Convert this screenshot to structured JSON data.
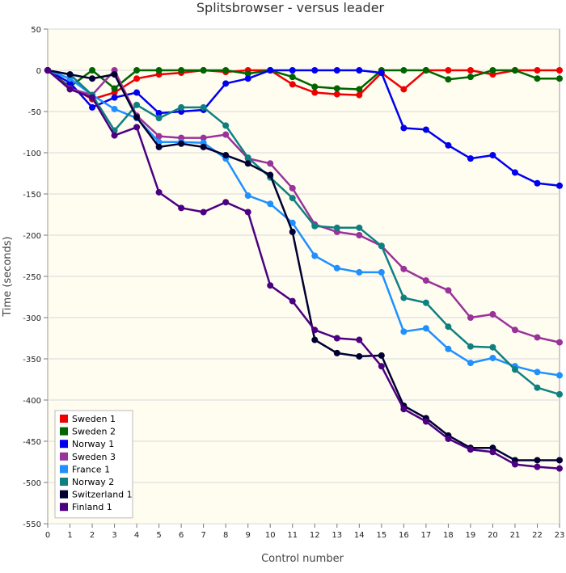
{
  "chart_data": {
    "type": "line",
    "title": "Splitsbrowser - versus leader",
    "xlabel": "Control number",
    "ylabel": "Time (seconds)",
    "ylim": [
      -550,
      50
    ],
    "yticks": [
      50,
      0,
      -50,
      -100,
      -150,
      -200,
      -250,
      -300,
      -350,
      -400,
      -450,
      -500,
      -550
    ],
    "xlim": [
      0,
      23
    ],
    "xticks": [
      "0",
      "1",
      "2",
      "3",
      "4",
      "5",
      "6",
      "7",
      "8",
      "9",
      "10",
      "11",
      "12",
      "13",
      "14",
      "15",
      "16",
      "17",
      "18",
      "19",
      "20",
      "21",
      "22",
      "23"
    ],
    "x": [
      0,
      1,
      2,
      3,
      4,
      5,
      6,
      7,
      8,
      9,
      10,
      11,
      12,
      13,
      14,
      15,
      16,
      17,
      18,
      19,
      20,
      21,
      22,
      23
    ],
    "grid": true,
    "legend_position": "bottom-left",
    "series": [
      {
        "name": "Sweden 1",
        "color": "#ee0000",
        "values": [
          0,
          -20,
          -35,
          -27,
          -10,
          -5,
          -3,
          0,
          -2,
          0,
          0,
          -17,
          -27,
          -29,
          -30,
          -3,
          -23,
          0,
          0,
          0,
          -5,
          0,
          0,
          0
        ]
      },
      {
        "name": "Sweden 2",
        "color": "#006400",
        "values": [
          0,
          -20,
          0,
          -22,
          0,
          0,
          0,
          0,
          0,
          -4,
          0,
          -8,
          -20,
          -22,
          -23,
          0,
          0,
          0,
          -11,
          -8,
          0,
          0,
          -10,
          -10
        ]
      },
      {
        "name": "Norway 1",
        "color": "#0000ee",
        "values": [
          0,
          -15,
          -45,
          -33,
          -27,
          -52,
          -50,
          -48,
          -16,
          -10,
          0,
          0,
          0,
          0,
          0,
          -3,
          -70,
          -72,
          -91,
          -107,
          -103,
          -124,
          -137,
          -140
        ]
      },
      {
        "name": "Sweden 3",
        "color": "#993399",
        "values": [
          0,
          -22,
          -30,
          0,
          -55,
          -80,
          -82,
          -82,
          -78,
          -107,
          -113,
          -143,
          -187,
          -196,
          -200,
          -213,
          -241,
          -255,
          -267,
          -300,
          -296,
          -315,
          -324,
          -330
        ]
      },
      {
        "name": "France 1",
        "color": "#1e90ff",
        "values": [
          0,
          -10,
          -30,
          -47,
          -58,
          -87,
          -87,
          -88,
          -107,
          -152,
          -162,
          -185,
          -225,
          -240,
          -245,
          -245,
          -317,
          -313,
          -338,
          -355,
          -349,
          -359,
          -366,
          -370
        ]
      },
      {
        "name": "Norway 2",
        "color": "#0f8080",
        "values": [
          0,
          -5,
          -30,
          -73,
          -42,
          -58,
          -45,
          -45,
          -67,
          -106,
          -130,
          -155,
          -189,
          -191,
          -191,
          -213,
          -276,
          -282,
          -311,
          -335,
          -336,
          -363,
          -385,
          -393
        ]
      },
      {
        "name": "Switzerland 1",
        "color": "#000033",
        "values": [
          0,
          -5,
          -10,
          -5,
          -57,
          -93,
          -89,
          -93,
          -103,
          -113,
          -127,
          -196,
          -327,
          -343,
          -347,
          -346,
          -407,
          -422,
          -443,
          -458,
          -458,
          -473,
          -473,
          -473
        ]
      },
      {
        "name": "Finland 1",
        "color": "#4b0082",
        "values": [
          0,
          -23,
          -33,
          -79,
          -69,
          -148,
          -167,
          -172,
          -160,
          -172,
          -261,
          -280,
          -315,
          -325,
          -327,
          -359,
          -411,
          -426,
          -447,
          -460,
          -463,
          -478,
          -481,
          -483
        ]
      }
    ]
  }
}
